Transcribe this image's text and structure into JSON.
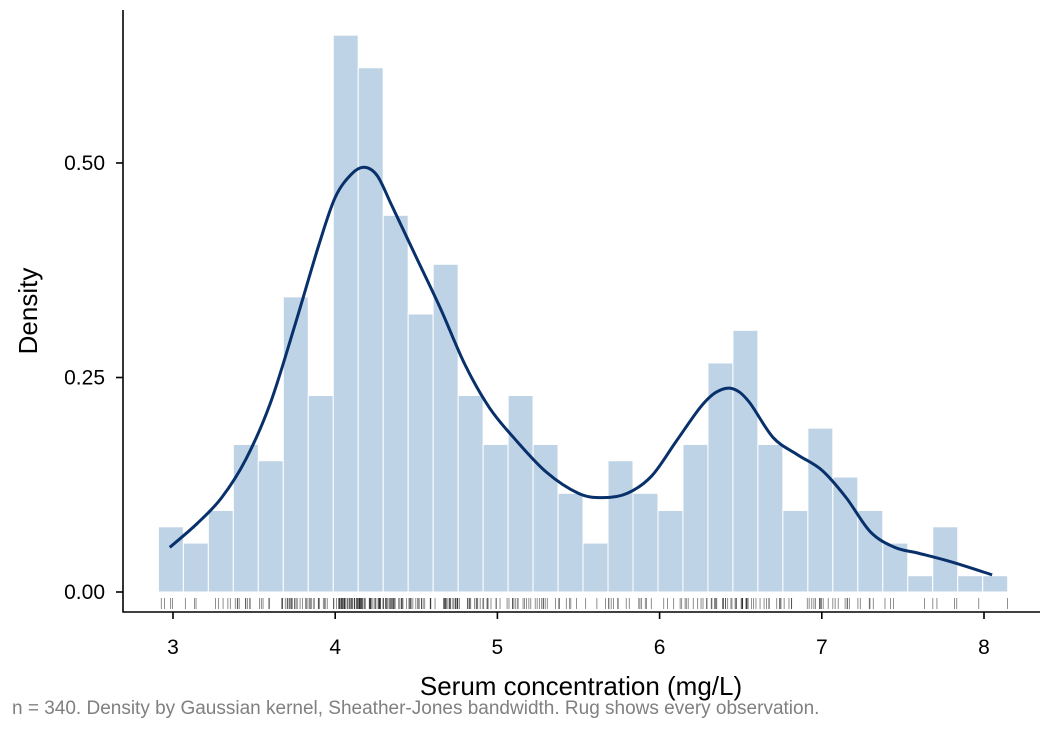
{
  "chart_data": {
    "type": "histogram",
    "title": "",
    "xlabel": "Serum concentration (mg/L)",
    "ylabel": "Density",
    "xlim": [
      2.7,
      8.35
    ],
    "ylim": [
      -0.025,
      0.67
    ],
    "x_ticks": [
      3,
      4,
      5,
      6,
      7,
      8
    ],
    "x_tick_labels": [
      "3",
      "4",
      "5",
      "6",
      "7",
      "8"
    ],
    "y_ticks": [
      0.0,
      0.25,
      0.5
    ],
    "y_tick_labels": [
      "0.00",
      "0.25",
      "0.50"
    ],
    "grid": false,
    "bin_width": 0.154,
    "bins": [
      {
        "x0": 2.91,
        "x1": 3.064,
        "density": 0.076
      },
      {
        "x0": 3.064,
        "x1": 3.218,
        "density": 0.057
      },
      {
        "x0": 3.218,
        "x1": 3.372,
        "density": 0.095
      },
      {
        "x0": 3.372,
        "x1": 3.526,
        "density": 0.172
      },
      {
        "x0": 3.526,
        "x1": 3.68,
        "density": 0.153
      },
      {
        "x0": 3.68,
        "x1": 3.834,
        "density": 0.344
      },
      {
        "x0": 3.834,
        "x1": 3.988,
        "density": 0.229
      },
      {
        "x0": 3.988,
        "x1": 4.142,
        "density": 0.649
      },
      {
        "x0": 4.142,
        "x1": 4.296,
        "density": 0.611
      },
      {
        "x0": 4.296,
        "x1": 4.45,
        "density": 0.439
      },
      {
        "x0": 4.45,
        "x1": 4.604,
        "density": 0.324
      },
      {
        "x0": 4.604,
        "x1": 4.758,
        "density": 0.382
      },
      {
        "x0": 4.758,
        "x1": 4.912,
        "density": 0.229
      },
      {
        "x0": 4.912,
        "x1": 5.066,
        "density": 0.172
      },
      {
        "x0": 5.066,
        "x1": 5.22,
        "density": 0.229
      },
      {
        "x0": 5.22,
        "x1": 5.374,
        "density": 0.172
      },
      {
        "x0": 5.374,
        "x1": 5.528,
        "density": 0.115
      },
      {
        "x0": 5.528,
        "x1": 5.682,
        "density": 0.057
      },
      {
        "x0": 5.682,
        "x1": 5.836,
        "density": 0.153
      },
      {
        "x0": 5.836,
        "x1": 5.99,
        "density": 0.115
      },
      {
        "x0": 5.99,
        "x1": 6.144,
        "density": 0.095
      },
      {
        "x0": 6.144,
        "x1": 6.298,
        "density": 0.172
      },
      {
        "x0": 6.298,
        "x1": 6.452,
        "density": 0.267
      },
      {
        "x0": 6.452,
        "x1": 6.606,
        "density": 0.305
      },
      {
        "x0": 6.606,
        "x1": 6.76,
        "density": 0.172
      },
      {
        "x0": 6.76,
        "x1": 6.914,
        "density": 0.095
      },
      {
        "x0": 6.914,
        "x1": 7.068,
        "density": 0.191
      },
      {
        "x0": 7.068,
        "x1": 7.222,
        "density": 0.134
      },
      {
        "x0": 7.222,
        "x1": 7.376,
        "density": 0.095
      },
      {
        "x0": 7.376,
        "x1": 7.53,
        "density": 0.057
      },
      {
        "x0": 7.53,
        "x1": 7.684,
        "density": 0.019
      },
      {
        "x0": 7.684,
        "x1": 7.838,
        "density": 0.076
      },
      {
        "x0": 7.838,
        "x1": 7.992,
        "density": 0.019
      },
      {
        "x0": 7.992,
        "x1": 8.146,
        "density": 0.019
      }
    ],
    "kde": {
      "x": [
        2.98,
        3.15,
        3.3,
        3.45,
        3.6,
        3.75,
        3.9,
        4.0,
        4.1,
        4.18,
        4.26,
        4.35,
        4.5,
        4.65,
        4.8,
        4.95,
        5.1,
        5.3,
        5.5,
        5.65,
        5.8,
        5.95,
        6.1,
        6.25,
        6.35,
        6.45,
        6.55,
        6.7,
        6.85,
        7.0,
        7.15,
        7.3,
        7.45,
        7.6,
        7.8,
        8.05
      ],
      "y": [
        0.052,
        0.08,
        0.11,
        0.155,
        0.22,
        0.31,
        0.405,
        0.46,
        0.487,
        0.495,
        0.485,
        0.45,
        0.39,
        0.33,
        0.265,
        0.215,
        0.18,
        0.14,
        0.115,
        0.11,
        0.115,
        0.135,
        0.175,
        0.215,
        0.233,
        0.237,
        0.222,
        0.18,
        0.16,
        0.142,
        0.11,
        0.07,
        0.052,
        0.045,
        0.035,
        0.02
      ]
    },
    "rug_n": 340,
    "colors": {
      "bar_fill": "#bfd3e6",
      "bar_edge": "#ffffff",
      "kde_line": "#08306b",
      "rug": "#000000",
      "axis": "#000000",
      "caption": "#808080"
    }
  },
  "caption": "n = 340. Density by Gaussian kernel, Sheather-Jones bandwidth. Rug shows every observation."
}
